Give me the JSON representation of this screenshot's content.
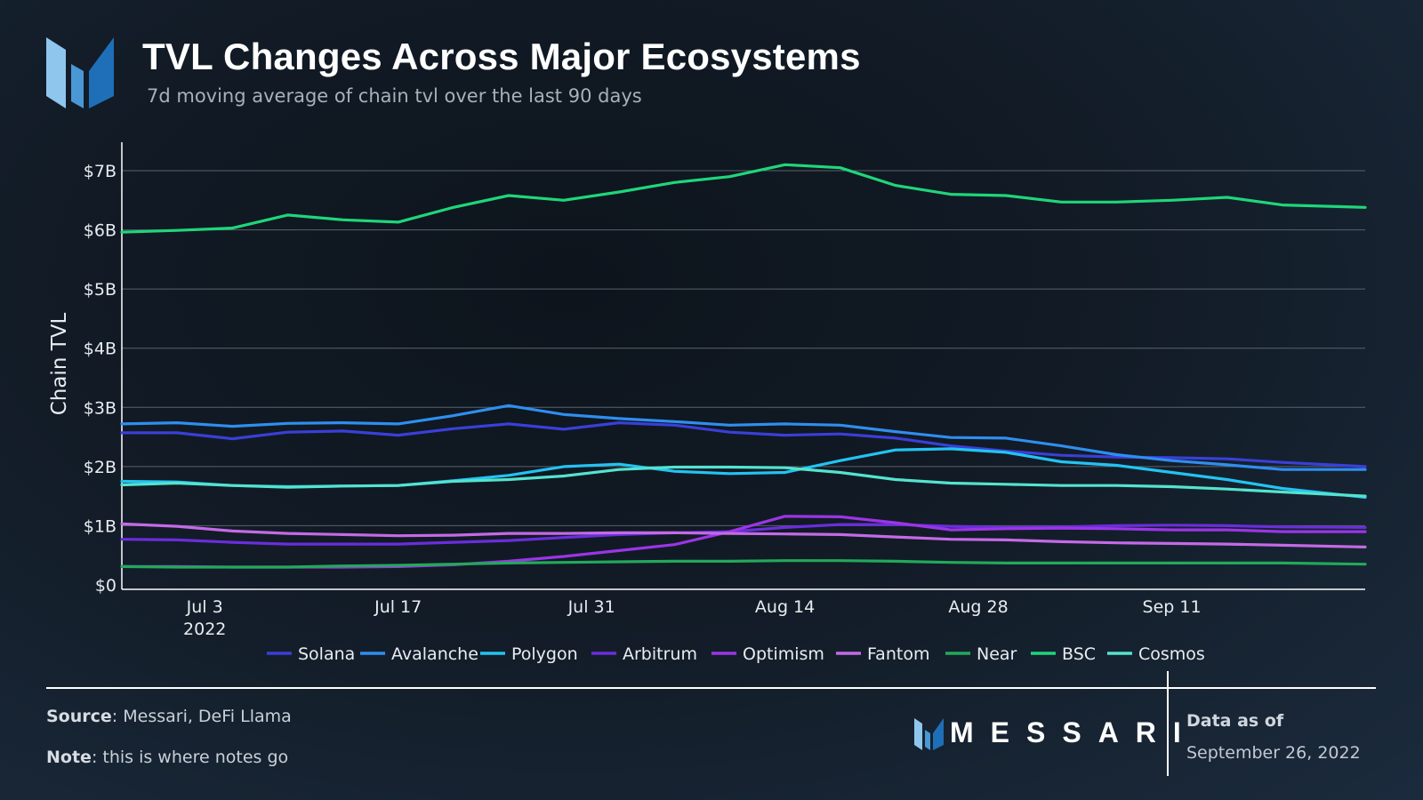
{
  "header": {
    "title": "TVL Changes Across Major Ecosystems",
    "subtitle": "7d moving average of chain tvl over the last 90 days"
  },
  "footer": {
    "source_label": "Source",
    "source_text": ": Messari, DeFi Llama",
    "note_label": "Note",
    "note_text": ": this is where notes go",
    "brand": "MESSARI",
    "asof_label": "Data as of",
    "asof_date": "September 26, 2022"
  },
  "colors": {
    "logo_light": "#8fc6ee",
    "logo_mid": "#4a97d6",
    "logo_dark": "#1f6fb8",
    "grid": "#5a626c",
    "axis_text": "#e8ecf0"
  },
  "chart_data": {
    "type": "line",
    "title": "TVL Changes Across Major Ecosystems",
    "ylabel": "Chain TVL",
    "xlabel": "",
    "x_range": [
      "2022-06-27",
      "2022-09-25"
    ],
    "ylim": [
      0,
      7.5
    ],
    "y_ticks": [
      {
        "value": 0,
        "label": "$0"
      },
      {
        "value": 1,
        "label": "$1B"
      },
      {
        "value": 2,
        "label": "$2B"
      },
      {
        "value": 3,
        "label": "$3B"
      },
      {
        "value": 4,
        "label": "$4B"
      },
      {
        "value": 5,
        "label": "$5B"
      },
      {
        "value": 6,
        "label": "$6B"
      },
      {
        "value": 7,
        "label": "$7B"
      }
    ],
    "x_ticks": [
      {
        "date": "2022-07-03",
        "label": "Jul 3",
        "sublabel": "2022"
      },
      {
        "date": "2022-07-17",
        "label": "Jul 17",
        "sublabel": ""
      },
      {
        "date": "2022-07-31",
        "label": "Jul 31",
        "sublabel": ""
      },
      {
        "date": "2022-08-14",
        "label": "Aug 14",
        "sublabel": ""
      },
      {
        "date": "2022-08-28",
        "label": "Aug 28",
        "sublabel": ""
      },
      {
        "date": "2022-09-11",
        "label": "Sep 11",
        "sublabel": ""
      }
    ],
    "grid": true,
    "legend_position": "bottom",
    "dates": [
      "2022-06-27",
      "2022-07-01",
      "2022-07-05",
      "2022-07-09",
      "2022-07-13",
      "2022-07-17",
      "2022-07-21",
      "2022-07-25",
      "2022-07-29",
      "2022-08-02",
      "2022-08-06",
      "2022-08-10",
      "2022-08-14",
      "2022-08-18",
      "2022-08-22",
      "2022-08-26",
      "2022-08-30",
      "2022-09-03",
      "2022-09-07",
      "2022-09-11",
      "2022-09-15",
      "2022-09-19",
      "2022-09-25"
    ],
    "series": [
      {
        "name": "Solana",
        "color": "#3a3fd8",
        "values": [
          2.57,
          2.57,
          2.47,
          2.58,
          2.6,
          2.53,
          2.64,
          2.72,
          2.63,
          2.74,
          2.7,
          2.58,
          2.53,
          2.55,
          2.48,
          2.35,
          2.26,
          2.19,
          2.16,
          2.15,
          2.13,
          2.07,
          2.0
        ]
      },
      {
        "name": "Avalanche",
        "color": "#2f8ef0",
        "values": [
          2.72,
          2.74,
          2.68,
          2.73,
          2.74,
          2.72,
          2.86,
          3.03,
          2.88,
          2.81,
          2.76,
          2.7,
          2.72,
          2.7,
          2.59,
          2.49,
          2.48,
          2.35,
          2.2,
          2.1,
          2.03,
          1.95,
          1.95
        ]
      },
      {
        "name": "Polygon",
        "color": "#23c3f2",
        "values": [
          1.75,
          1.74,
          1.68,
          1.66,
          1.67,
          1.68,
          1.76,
          1.85,
          2.0,
          2.04,
          1.92,
          1.88,
          1.9,
          2.1,
          2.28,
          2.3,
          2.24,
          2.08,
          2.02,
          1.9,
          1.78,
          1.63,
          1.48
        ]
      },
      {
        "name": "Arbitrum",
        "color": "#6a2ddc",
        "values": [
          0.77,
          0.76,
          0.72,
          0.69,
          0.69,
          0.69,
          0.72,
          0.75,
          0.8,
          0.85,
          0.88,
          0.9,
          0.97,
          1.02,
          1.02,
          0.99,
          0.97,
          0.98,
          1.0,
          1.01,
          1.0,
          0.98,
          0.97
        ]
      },
      {
        "name": "Optimism",
        "color": "#9b35e6",
        "values": [
          0.31,
          0.31,
          0.3,
          0.3,
          0.3,
          0.31,
          0.34,
          0.4,
          0.48,
          0.58,
          0.68,
          0.9,
          1.16,
          1.15,
          1.05,
          0.93,
          0.95,
          0.96,
          0.95,
          0.93,
          0.93,
          0.9,
          0.9
        ]
      },
      {
        "name": "Fantom",
        "color": "#c46ae6",
        "values": [
          1.03,
          0.99,
          0.91,
          0.87,
          0.85,
          0.83,
          0.84,
          0.87,
          0.87,
          0.88,
          0.88,
          0.87,
          0.86,
          0.85,
          0.81,
          0.77,
          0.76,
          0.73,
          0.71,
          0.7,
          0.69,
          0.67,
          0.64
        ]
      },
      {
        "name": "Near",
        "color": "#22a95a",
        "values": [
          0.31,
          0.3,
          0.3,
          0.3,
          0.32,
          0.33,
          0.35,
          0.37,
          0.38,
          0.39,
          0.4,
          0.4,
          0.41,
          0.41,
          0.4,
          0.38,
          0.37,
          0.37,
          0.37,
          0.37,
          0.37,
          0.37,
          0.35
        ]
      },
      {
        "name": "BSC",
        "color": "#1fd67a",
        "values": [
          5.96,
          5.99,
          6.03,
          6.25,
          6.17,
          6.13,
          6.38,
          6.58,
          6.5,
          6.64,
          6.8,
          6.9,
          7.1,
          7.05,
          6.75,
          6.6,
          6.58,
          6.47,
          6.47,
          6.5,
          6.55,
          6.42,
          6.38
        ]
      },
      {
        "name": "Cosmos",
        "color": "#54e3cf",
        "values": [
          1.69,
          1.72,
          1.68,
          1.65,
          1.67,
          1.68,
          1.75,
          1.78,
          1.84,
          1.95,
          1.99,
          1.99,
          1.98,
          1.9,
          1.78,
          1.72,
          1.7,
          1.68,
          1.68,
          1.66,
          1.62,
          1.57,
          1.5
        ]
      }
    ]
  }
}
